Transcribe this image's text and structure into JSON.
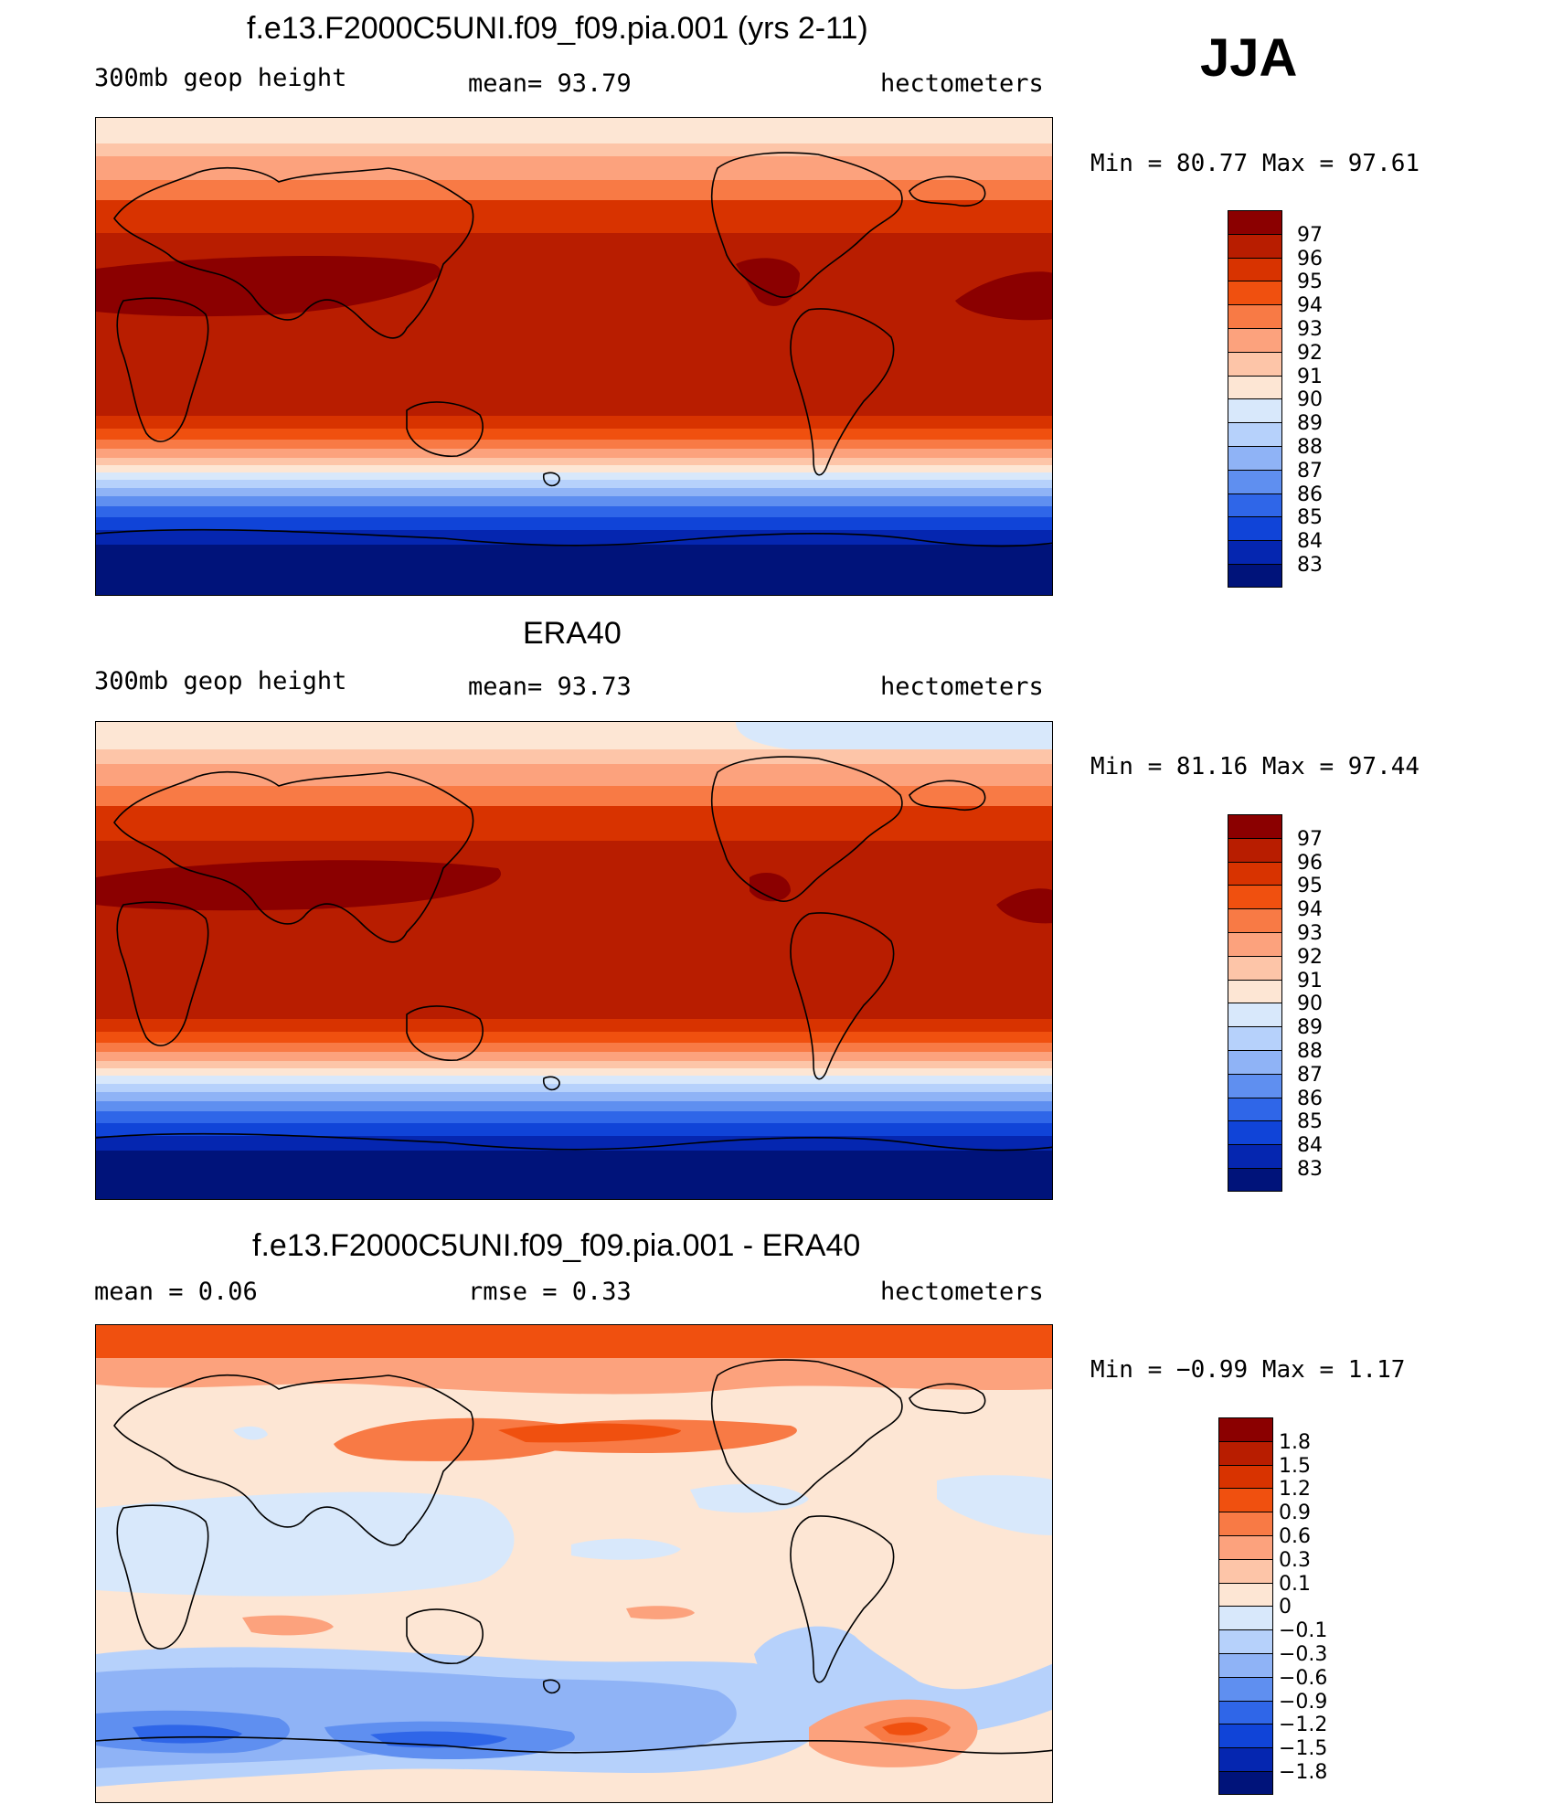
{
  "season": "JJA",
  "panels": [
    {
      "id": "model",
      "title": "f.e13.F2000C5UNI.f09_f09.pia.001 (yrs 2-11)",
      "left_label": "300mb geop height",
      "center_label": "mean=  93.79",
      "right_label": "hectometers",
      "minmax": "Min =  80.77 Max =  97.61"
    },
    {
      "id": "obs",
      "title": "ERA40",
      "left_label": "300mb geop height",
      "center_label": "mean=  93.73",
      "right_label": "hectometers",
      "minmax": "Min =  81.16 Max =  97.44"
    },
    {
      "id": "diff",
      "title": "f.e13.F2000C5UNI.f09_f09.pia.001 - ERA40",
      "left_label": "mean =    0.06",
      "center_label": "rmse =    0.33",
      "right_label": "hectometers",
      "minmax": "Min =  −0.99 Max =    1.17"
    }
  ],
  "colorbars": {
    "absolute": {
      "labels": [
        "97",
        "96",
        "95",
        "94",
        "93",
        "92",
        "91",
        "90",
        "89",
        "88",
        "87",
        "86",
        "85",
        "84",
        "83"
      ],
      "colors": [
        "#8b0000",
        "#b81d00",
        "#d83300",
        "#f0500f",
        "#f87a45",
        "#fca27d",
        "#fdc5a8",
        "#fde6d4",
        "#d8e8fb",
        "#b6d1fb",
        "#8fb3f6",
        "#5f8ff0",
        "#2f66e8",
        "#1044d8",
        "#0526b0",
        "#00137a"
      ]
    },
    "difference": {
      "labels": [
        "1.8",
        "1.5",
        "1.2",
        "0.9",
        "0.6",
        "0.3",
        "0.1",
        "0",
        "−0.1",
        "−0.3",
        "−0.6",
        "−0.9",
        "−1.2",
        "−1.5",
        "−1.8"
      ],
      "colors": [
        "#8b0000",
        "#b81d00",
        "#d83300",
        "#f0500f",
        "#f87a45",
        "#fca27d",
        "#fdc5a8",
        "#fde6d4",
        "#d8e8fb",
        "#b6d1fb",
        "#8fb3f6",
        "#5f8ff0",
        "#2f66e8",
        "#1044d8",
        "#0526b0",
        "#00137a"
      ]
    }
  }
}
